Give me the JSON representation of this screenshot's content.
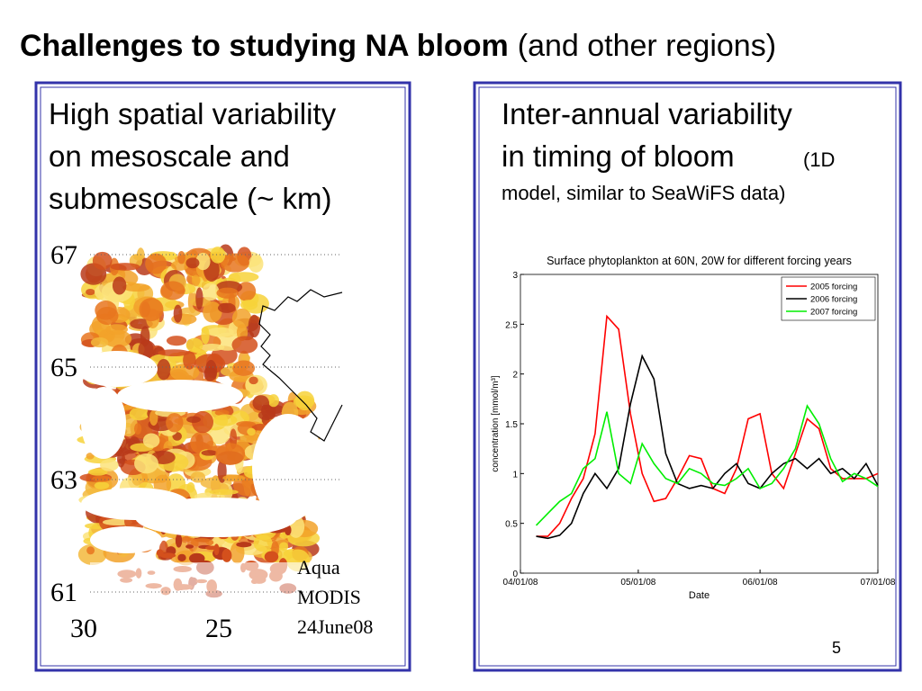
{
  "slide": {
    "title_bold": "Challenges to studying NA bloom",
    "title_normal": "(and other regions)",
    "page_number": "5"
  },
  "left_panel": {
    "lines": [
      "High spatial variability",
      "on mesoscale and",
      "submesoscale (~ km)"
    ],
    "map": {
      "lat_labels": [
        "67",
        "65",
        "63",
        "61"
      ],
      "lon_labels": [
        "30",
        "25"
      ],
      "caption_lines": [
        "Aqua",
        "MODIS",
        "24June08"
      ]
    }
  },
  "right_panel": {
    "heading_lines": [
      "Inter-annual variability",
      "in timing of bloom"
    ],
    "note_lines": [
      "(1D",
      "model, similar to SeaWiFS data)"
    ]
  },
  "chart_data": {
    "type": "line",
    "title": "Surface phytoplankton at 60N, 20W for different forcing years",
    "x_label": "Date",
    "y_label": "concentration [mmol/m³]",
    "x": [
      4,
      7,
      10,
      13,
      16,
      19,
      22,
      25,
      28,
      31,
      34,
      37,
      40,
      43,
      46,
      49,
      52,
      55,
      58,
      61,
      64,
      67,
      70,
      73,
      76,
      79,
      82,
      85,
      88,
      91
    ],
    "xlim": [
      0,
      91
    ],
    "xticks": [
      {
        "value": 0,
        "label": "04/01/08"
      },
      {
        "value": 30,
        "label": "05/01/08"
      },
      {
        "value": 61,
        "label": "06/01/08"
      },
      {
        "value": 91,
        "label": "07/01/08"
      }
    ],
    "ylim": [
      0,
      3
    ],
    "yticks": [
      0,
      0.5,
      1,
      1.5,
      2,
      2.5,
      3
    ],
    "legend": "top-right",
    "series": [
      {
        "name": "2005 forcing",
        "color": "#ff0000",
        "values": [
          0.37,
          0.37,
          0.5,
          0.75,
          0.95,
          1.4,
          2.58,
          2.45,
          1.6,
          1.0,
          0.72,
          0.75,
          0.95,
          1.18,
          1.15,
          0.85,
          0.8,
          1.05,
          1.55,
          1.6,
          1.0,
          0.85,
          1.2,
          1.55,
          1.45,
          1.05,
          0.95,
          0.95,
          0.95,
          1.0
        ]
      },
      {
        "name": "2006 forcing",
        "color": "#000000",
        "values": [
          0.37,
          0.35,
          0.38,
          0.5,
          0.8,
          1.0,
          0.85,
          1.05,
          1.7,
          2.18,
          1.95,
          1.2,
          0.9,
          0.85,
          0.88,
          0.85,
          1.0,
          1.1,
          0.9,
          0.85,
          1.0,
          1.1,
          1.15,
          1.05,
          1.15,
          1.0,
          1.05,
          0.95,
          1.1,
          0.88
        ]
      },
      {
        "name": "2007 forcing",
        "color": "#00ee00",
        "values": [
          0.48,
          0.6,
          0.72,
          0.8,
          1.05,
          1.15,
          1.62,
          1.0,
          0.9,
          1.3,
          1.1,
          0.95,
          0.9,
          1.05,
          1.0,
          0.9,
          0.88,
          0.95,
          1.05,
          0.85,
          0.9,
          1.05,
          1.25,
          1.68,
          1.5,
          1.15,
          0.92,
          1.0,
          0.95,
          0.87
        ]
      }
    ]
  }
}
